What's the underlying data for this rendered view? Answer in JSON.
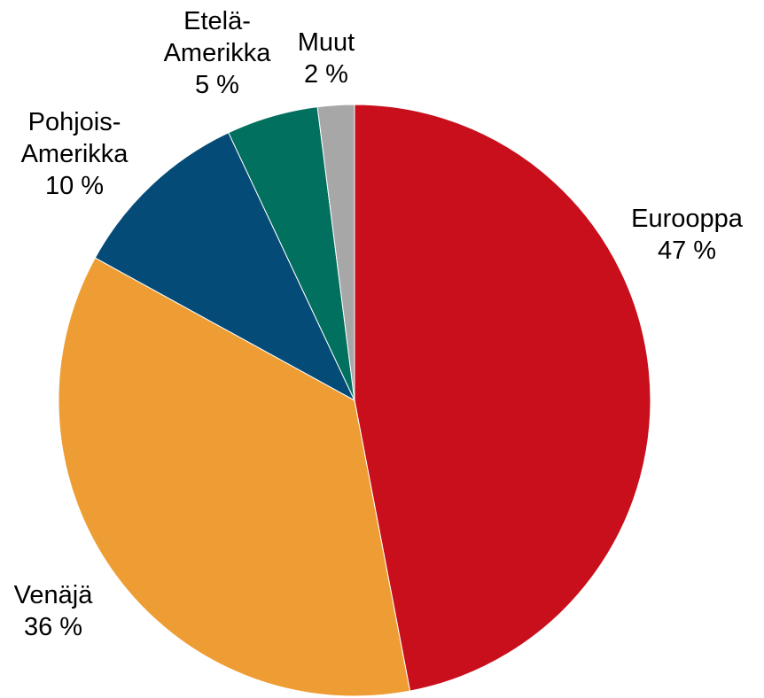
{
  "chart_data": {
    "type": "pie",
    "title": "",
    "start": "12 o'clock",
    "direction": "clockwise",
    "slices": [
      {
        "name": "Eurooppa",
        "value": 47,
        "value_label": "47 %",
        "label_lines": [
          "Eurooppa"
        ],
        "color": "#c80f1b"
      },
      {
        "name": "Venäjä",
        "value": 36,
        "value_label": "36 %",
        "label_lines": [
          "Venäjä"
        ],
        "color": "#ee9d34"
      },
      {
        "name": "Pohjois-Amerikka",
        "value": 10,
        "value_label": "10 %",
        "label_lines": [
          "Pohjois-",
          "Amerikka"
        ],
        "color": "#044b77"
      },
      {
        "name": "Etelä-Amerikka",
        "value": 5,
        "value_label": "5 %",
        "label_lines": [
          "Etelä-",
          "Amerikka"
        ],
        "color": "#02705e"
      },
      {
        "name": "Muut",
        "value": 2,
        "value_label": "2 %",
        "label_lines": [
          "Muut"
        ],
        "color": "#a7a7a7"
      }
    ]
  }
}
